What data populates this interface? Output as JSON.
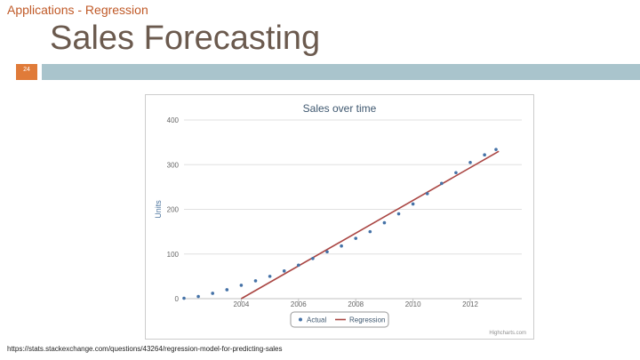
{
  "slide": {
    "kicker": "Applications - Regression",
    "title": "Sales Forecasting",
    "page_number": "24",
    "source_url": "https://stats.stackexchange.com/questions/43264/regression-model-for-predicting-sales",
    "accent_color": "#e07b39",
    "bar_color": "#a9c4cc"
  },
  "chart_data": {
    "type": "line",
    "title": "Sales over time",
    "xlabel": "",
    "ylabel": "Units",
    "xlim": [
      2002.0,
      2013.8
    ],
    "ylim": [
      0,
      400
    ],
    "x_ticks": [
      2004,
      2006,
      2008,
      2010,
      2012
    ],
    "y_ticks": [
      0,
      100,
      200,
      300,
      400
    ],
    "grid": "horizontal",
    "legend_placement": "bottom-center",
    "credit": "Highcharts.com",
    "series": [
      {
        "name": "Actual",
        "style": "markers",
        "color": "#4572a7",
        "x": [
          2002.0,
          2002.5,
          2003.0,
          2003.5,
          2004.0,
          2004.5,
          2005.0,
          2005.5,
          2006.0,
          2006.5,
          2007.0,
          2007.5,
          2008.0,
          2008.5,
          2009.0,
          2009.5,
          2010.0,
          2010.5,
          2011.0,
          2011.5,
          2012.0,
          2012.5,
          2012.9
        ],
        "y": [
          1,
          5,
          12,
          20,
          30,
          40,
          50,
          62,
          75,
          90,
          105,
          118,
          135,
          150,
          170,
          190,
          212,
          235,
          258,
          282,
          305,
          322,
          334
        ]
      },
      {
        "name": "Regression",
        "style": "line",
        "color": "#aa4643",
        "x": [
          2004.0,
          2013.0
        ],
        "y": [
          0,
          330
        ]
      }
    ]
  }
}
